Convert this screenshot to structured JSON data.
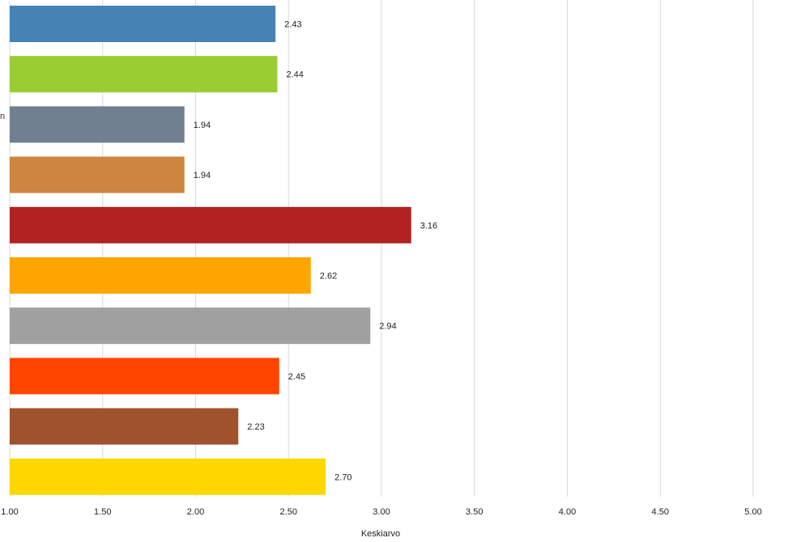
{
  "chart_data": {
    "type": "bar",
    "orientation": "horizontal",
    "title": "",
    "xlabel": "Keskiarvo",
    "ylabel": "",
    "xlim": [
      1.0,
      5.0
    ],
    "x_ticks": [
      "1.00",
      "1.50",
      "2.00",
      "2.50",
      "3.00",
      "3.50",
      "4.00",
      "4.50",
      "5.00"
    ],
    "grid": "vertical",
    "legend": "none",
    "bars": [
      {
        "value": 2.43,
        "label": "2.43",
        "color": "#4682B4"
      },
      {
        "value": 2.44,
        "label": "2.44",
        "color": "#9ACD32"
      },
      {
        "value": 1.94,
        "label": "1.94",
        "color": "#708090"
      },
      {
        "value": 1.94,
        "label": "1.94",
        "color": "#CD853F"
      },
      {
        "value": 3.16,
        "label": "3.16",
        "color": "#B22222"
      },
      {
        "value": 2.62,
        "label": "2.62",
        "color": "#FFA500"
      },
      {
        "value": 2.94,
        "label": "2.94",
        "color": "#A0A0A0"
      },
      {
        "value": 2.45,
        "label": "2.45",
        "color": "#FF4500"
      },
      {
        "value": 2.23,
        "label": "2.23",
        "color": "#A0522D"
      },
      {
        "value": 2.7,
        "label": "2.70",
        "color": "#FFD700"
      }
    ]
  },
  "edge_fragment": "n",
  "colors": {
    "gridline": "#D9D9D9",
    "text": "#222222"
  }
}
